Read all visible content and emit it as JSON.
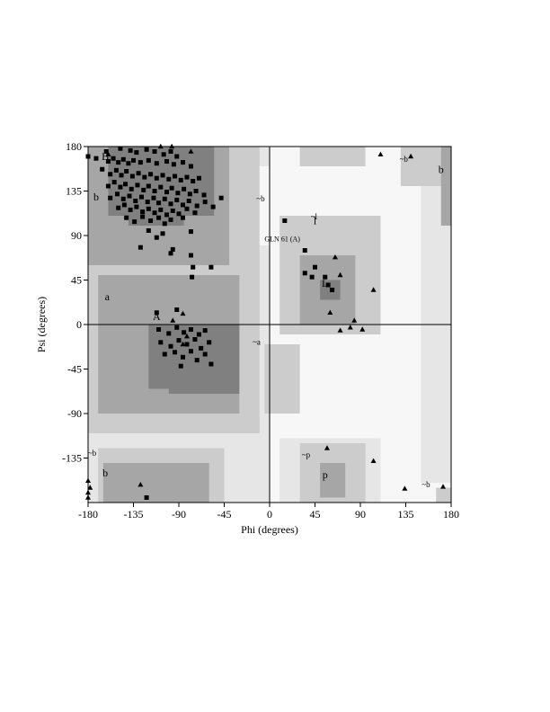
{
  "chart_data": {
    "type": "scatter",
    "title": "",
    "xlabel": "Phi (degrees)",
    "ylabel": "Psi (degrees)",
    "xlim": [
      -180,
      180
    ],
    "ylim": [
      -180,
      180
    ],
    "xticks": [
      -180,
      -135,
      -90,
      -45,
      0,
      45,
      90,
      135,
      180
    ],
    "yticks": [
      180,
      135,
      90,
      45,
      0,
      -45,
      -90,
      -135
    ],
    "grid": false,
    "colors": {
      "core": "#808080",
      "allowed": "#a6a6a6",
      "generous": "#cccccc",
      "outer": "#e6e6e6",
      "disallowed": "#f7f7f7",
      "points": "#000000"
    },
    "region_labels": [
      {
        "text": "B",
        "x": -163,
        "y": 170
      },
      {
        "text": "b",
        "x": -172,
        "y": 129
      },
      {
        "text": "a",
        "x": -161,
        "y": 28
      },
      {
        "text": "A",
        "x": -112,
        "y": 8
      },
      {
        "text": "l",
        "x": 45,
        "y": 105
      },
      {
        "text": "L",
        "x": 55,
        "y": 42
      },
      {
        "text": "~b",
        "x": -9,
        "y": 128
      },
      {
        "text": "~a",
        "x": -13,
        "y": -17
      },
      {
        "text": "~l",
        "x": 44,
        "y": 110
      },
      {
        "text": "~b",
        "x": -176,
        "y": -129
      },
      {
        "text": "b",
        "x": -163,
        "y": -150
      },
      {
        "text": "~p",
        "x": 36,
        "y": -131
      },
      {
        "text": "p",
        "x": 55,
        "y": -152
      },
      {
        "text": "~b",
        "x": 133,
        "y": 168
      },
      {
        "text": "b",
        "x": 170,
        "y": 157
      },
      {
        "text": "~b",
        "x": 155,
        "y": -161
      }
    ],
    "annotations": [
      {
        "text": "GLN 61 (A)",
        "x": -5,
        "y": 84
      }
    ],
    "series": [
      {
        "marker": "square",
        "points": [
          [
            -162,
            175
          ],
          [
            -148,
            178
          ],
          [
            -138,
            176
          ],
          [
            -132,
            174
          ],
          [
            -122,
            177
          ],
          [
            -114,
            175
          ],
          [
            -105,
            172
          ],
          [
            -98,
            175
          ],
          [
            -92,
            170
          ],
          [
            -172,
            168
          ],
          [
            -160,
            165
          ],
          [
            -155,
            168
          ],
          [
            -150,
            164
          ],
          [
            -145,
            167
          ],
          [
            -140,
            163
          ],
          [
            -135,
            166
          ],
          [
            -128,
            164
          ],
          [
            -120,
            166
          ],
          [
            -112,
            163
          ],
          [
            -102,
            165
          ],
          [
            -95,
            162
          ],
          [
            -86,
            164
          ],
          [
            -78,
            160
          ],
          [
            -166,
            157
          ],
          [
            -158,
            152
          ],
          [
            -152,
            156
          ],
          [
            -147,
            151
          ],
          [
            -142,
            155
          ],
          [
            -136,
            150
          ],
          [
            -130,
            153
          ],
          [
            -124,
            149
          ],
          [
            -118,
            152
          ],
          [
            -112,
            148
          ],
          [
            -106,
            151
          ],
          [
            -100,
            147
          ],
          [
            -94,
            150
          ],
          [
            -88,
            146
          ],
          [
            -82,
            149
          ],
          [
            -76,
            145
          ],
          [
            -70,
            148
          ],
          [
            -160,
            140
          ],
          [
            -154,
            144
          ],
          [
            -148,
            139
          ],
          [
            -143,
            142
          ],
          [
            -137,
            137
          ],
          [
            -131,
            141
          ],
          [
            -125,
            136
          ],
          [
            -120,
            140
          ],
          [
            -114,
            135
          ],
          [
            -108,
            139
          ],
          [
            -102,
            134
          ],
          [
            -97,
            138
          ],
          [
            -91,
            133
          ],
          [
            -85,
            137
          ],
          [
            -79,
            132
          ],
          [
            -73,
            135
          ],
          [
            -65,
            131
          ],
          [
            -158,
            128
          ],
          [
            -151,
            132
          ],
          [
            -145,
            127
          ],
          [
            -139,
            130
          ],
          [
            -133,
            125
          ],
          [
            -127,
            129
          ],
          [
            -121,
            124
          ],
          [
            -115,
            128
          ],
          [
            -110,
            123
          ],
          [
            -104,
            127
          ],
          [
            -98,
            122
          ],
          [
            -92,
            126
          ],
          [
            -86,
            121
          ],
          [
            -80,
            125
          ],
          [
            -72,
            120
          ],
          [
            -64,
            124
          ],
          [
            -56,
            119
          ],
          [
            -48,
            128
          ],
          [
            -150,
            118
          ],
          [
            -144,
            121
          ],
          [
            -138,
            116
          ],
          [
            -132,
            119
          ],
          [
            -126,
            114
          ],
          [
            -120,
            117
          ],
          [
            -114,
            113
          ],
          [
            -108,
            116
          ],
          [
            -102,
            111
          ],
          [
            -96,
            115
          ],
          [
            -90,
            112
          ],
          [
            -82,
            117
          ],
          [
            -74,
            113
          ],
          [
            -142,
            108
          ],
          [
            -134,
            104
          ],
          [
            -126,
            109
          ],
          [
            -118,
            105
          ],
          [
            -110,
            108
          ],
          [
            -104,
            102
          ],
          [
            -98,
            106
          ],
          [
            -86,
            108
          ],
          [
            -120,
            95
          ],
          [
            -106,
            92
          ],
          [
            -78,
            94
          ],
          [
            -112,
            88
          ],
          [
            -128,
            78
          ],
          [
            -96,
            76
          ],
          [
            -78,
            70
          ],
          [
            -76,
            58
          ],
          [
            -58,
            58
          ],
          [
            -77,
            48
          ],
          [
            -98,
            72
          ],
          [
            -112,
            12
          ],
          [
            -92,
            15
          ],
          [
            -110,
            -5
          ],
          [
            -100,
            -9
          ],
          [
            -92,
            -3
          ],
          [
            -85,
            -8
          ],
          [
            -78,
            -5
          ],
          [
            -70,
            -10
          ],
          [
            -64,
            -6
          ],
          [
            -108,
            -18
          ],
          [
            -98,
            -22
          ],
          [
            -90,
            -16
          ],
          [
            -82,
            -20
          ],
          [
            -74,
            -15
          ],
          [
            -68,
            -24
          ],
          [
            -60,
            -18
          ],
          [
            -104,
            -30
          ],
          [
            -94,
            -28
          ],
          [
            -86,
            -33
          ],
          [
            -78,
            -27
          ],
          [
            -72,
            -36
          ],
          [
            -64,
            -30
          ],
          [
            -58,
            -40
          ],
          [
            -88,
            -42
          ],
          [
            -184,
            170
          ],
          [
            -122,
            -175
          ],
          [
            15,
            105
          ],
          [
            35,
            75
          ],
          [
            45,
            58
          ],
          [
            42,
            48
          ],
          [
            55,
            48
          ],
          [
            58,
            40
          ],
          [
            35,
            52
          ],
          [
            62,
            35
          ]
        ]
      },
      {
        "marker": "triangle",
        "points": [
          [
            -180,
            -158
          ],
          [
            -178,
            -165
          ],
          [
            -180,
            -170
          ],
          [
            -180,
            -175
          ],
          [
            -108,
            180
          ],
          [
            -97,
            180
          ],
          [
            -78,
            175
          ],
          [
            -160,
            172
          ],
          [
            -128,
            -162
          ],
          [
            -96,
            4
          ],
          [
            -86,
            11
          ],
          [
            -82,
            -12
          ],
          [
            -86,
            -20
          ],
          [
            110,
            172
          ],
          [
            140,
            170
          ],
          [
            70,
            -6
          ],
          [
            84,
            4
          ],
          [
            92,
            -5
          ],
          [
            103,
            35
          ],
          [
            80,
            -3
          ],
          [
            65,
            68
          ],
          [
            60,
            12
          ],
          [
            70,
            50
          ],
          [
            57,
            -125
          ],
          [
            103,
            -138
          ],
          [
            134,
            -166
          ],
          [
            172,
            -164
          ]
        ]
      }
    ]
  }
}
